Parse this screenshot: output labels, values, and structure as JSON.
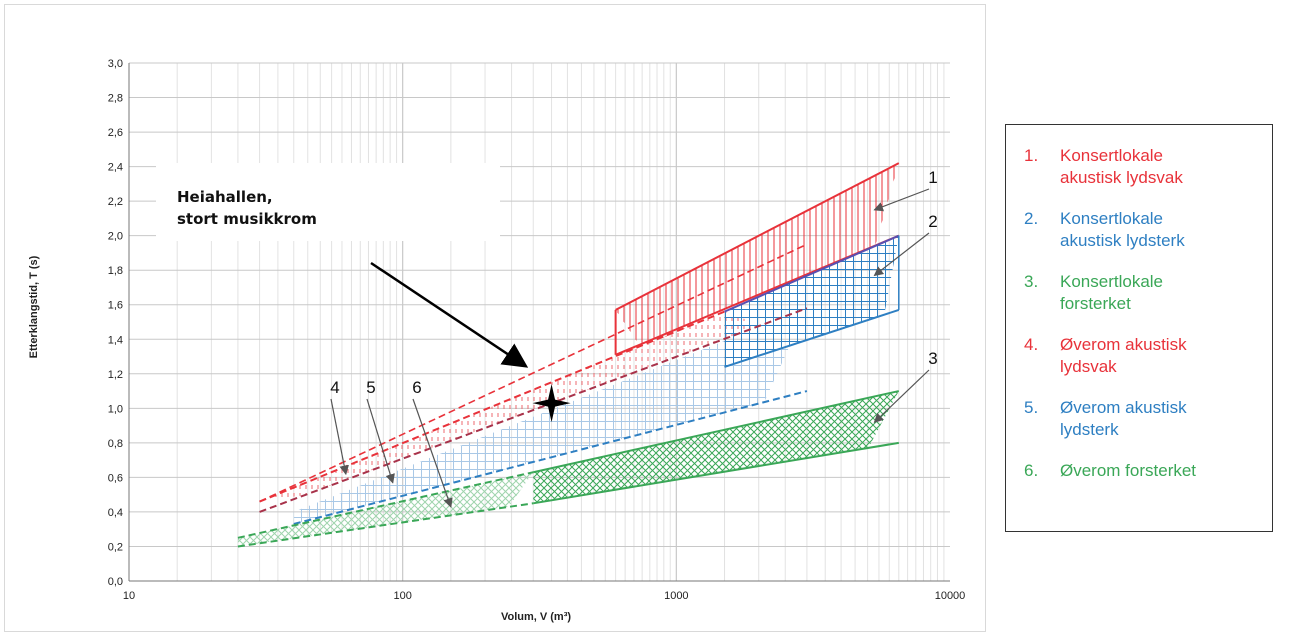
{
  "chart_data": {
    "type": "area",
    "xlabel": "Volum, V (m³)",
    "ylabel": "Etterklangstid, T (s)",
    "xscale": "log",
    "xlim": [
      10,
      10000
    ],
    "ylim": [
      0,
      3.0
    ],
    "x_ticks": [
      "10",
      "100",
      "1000",
      "10000"
    ],
    "y_ticks": [
      "0,0",
      "0,2",
      "0,4",
      "0,6",
      "0,8",
      "1,0",
      "1,2",
      "1,4",
      "1,6",
      "1,8",
      "2,0",
      "2,2",
      "2,4",
      "2,6",
      "2,8",
      "3,0"
    ],
    "grid": true,
    "series": [
      {
        "id": "1",
        "color": "#e8323a",
        "hatch": "vertical",
        "upper": [
          [
            600,
            1.57
          ],
          [
            6500,
            2.42
          ]
        ],
        "lower": [
          [
            600,
            1.31
          ],
          [
            6500,
            2.0
          ]
        ],
        "dashed_extension_upper": [
          [
            30,
            0.46
          ],
          [
            3000,
            1.95
          ]
        ]
      },
      {
        "id": "2",
        "color": "#2e7fc2",
        "hatch": "grid",
        "upper": [
          [
            1500,
            1.56
          ],
          [
            6500,
            2.0
          ]
        ],
        "lower": [
          [
            1500,
            1.24
          ],
          [
            6500,
            1.57
          ]
        ]
      },
      {
        "id": "3",
        "color": "#3aa757",
        "hatch": "crosshatch",
        "upper": [
          [
            300,
            0.63
          ],
          [
            6500,
            1.1
          ]
        ],
        "lower": [
          [
            300,
            0.45
          ],
          [
            6500,
            0.8
          ]
        ]
      },
      {
        "id": "4",
        "color": "#e8323a",
        "hatch": "vertical-dashed",
        "upper": [
          [
            30,
            0.46
          ],
          [
            1500,
            1.56
          ]
        ],
        "lower": [
          [
            30,
            0.4
          ],
          [
            3000,
            1.58
          ]
        ]
      },
      {
        "id": "5",
        "color": "#2e7fc2",
        "hatch": "light-grid",
        "upper": [
          [
            40,
            0.4
          ],
          [
            3000,
            1.58
          ]
        ],
        "lower": [
          [
            40,
            0.33
          ],
          [
            3000,
            1.1
          ]
        ]
      },
      {
        "id": "6",
        "color": "#3aa757",
        "hatch": "light-crosshatch",
        "upper": [
          [
            25,
            0.25
          ],
          [
            300,
            0.63
          ]
        ],
        "lower": [
          [
            25,
            0.2
          ],
          [
            300,
            0.45
          ]
        ]
      }
    ],
    "annotations": {
      "callout_line1": "Heiahallen,",
      "callout_line2": "stort musikkrom",
      "marker_point": [
        350,
        1.03
      ],
      "zone_numbers": [
        "1",
        "2",
        "3",
        "4",
        "5",
        "6"
      ]
    }
  },
  "legend": [
    {
      "num": "1.",
      "line1": "Konsertlokale",
      "line2": "akustisk lydsvak",
      "color": "#e8323a"
    },
    {
      "num": "2.",
      "line1": "Konsertlokale",
      "line2": "akustisk lydsterk",
      "color": "#2e7fc2"
    },
    {
      "num": "3.",
      "line1": "Konsertlokale",
      "line2": "forsterket",
      "color": "#3aa757"
    },
    {
      "num": "4.",
      "line1": "Øverom akustisk",
      "line2": "lydsvak",
      "color": "#e8323a"
    },
    {
      "num": "5.",
      "line1": "Øverom akustisk",
      "line2": "lydsterk",
      "color": "#2e7fc2"
    },
    {
      "num": "6.",
      "line1": "Øverom forsterket",
      "line2": "",
      "color": "#3aa757"
    }
  ]
}
